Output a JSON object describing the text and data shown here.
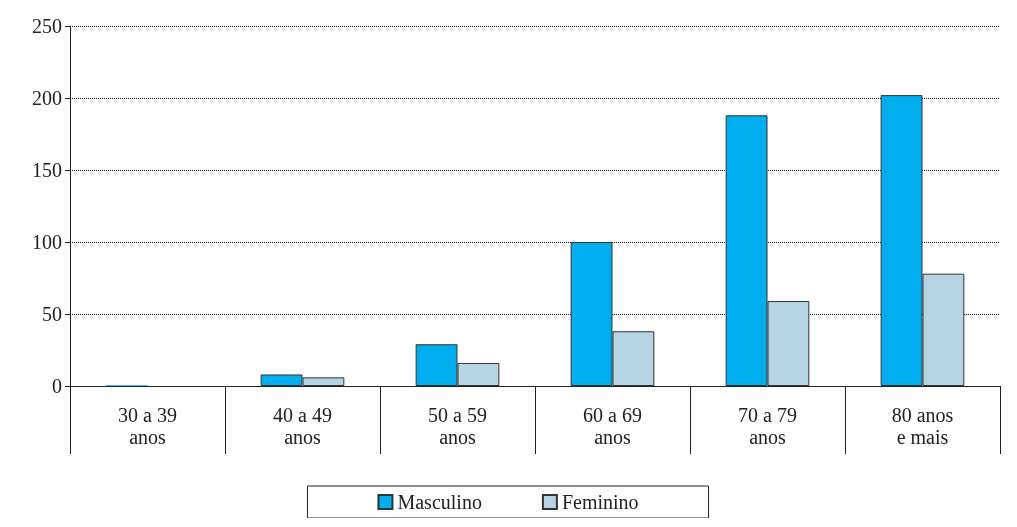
{
  "chart_data": {
    "type": "bar",
    "categories": [
      "30 a 39\nanos",
      "40 a 49\nanos",
      "50 a 59\nanos",
      "60 a 69\nanos",
      "70 a 79\nanos",
      "80 anos\ne mais"
    ],
    "series": [
      {
        "name": "Masculino",
        "color": "#00aeef",
        "values": [
          0.5,
          8,
          29,
          100,
          188,
          202
        ]
      },
      {
        "name": "Feminino",
        "color": "#b5d5e4",
        "values": [
          null,
          6,
          16,
          38,
          59,
          78
        ]
      }
    ],
    "ylim": [
      0,
      250
    ],
    "yticks": [
      0,
      50,
      100,
      150,
      200,
      250
    ],
    "grid": "y",
    "legend": "bottom"
  }
}
